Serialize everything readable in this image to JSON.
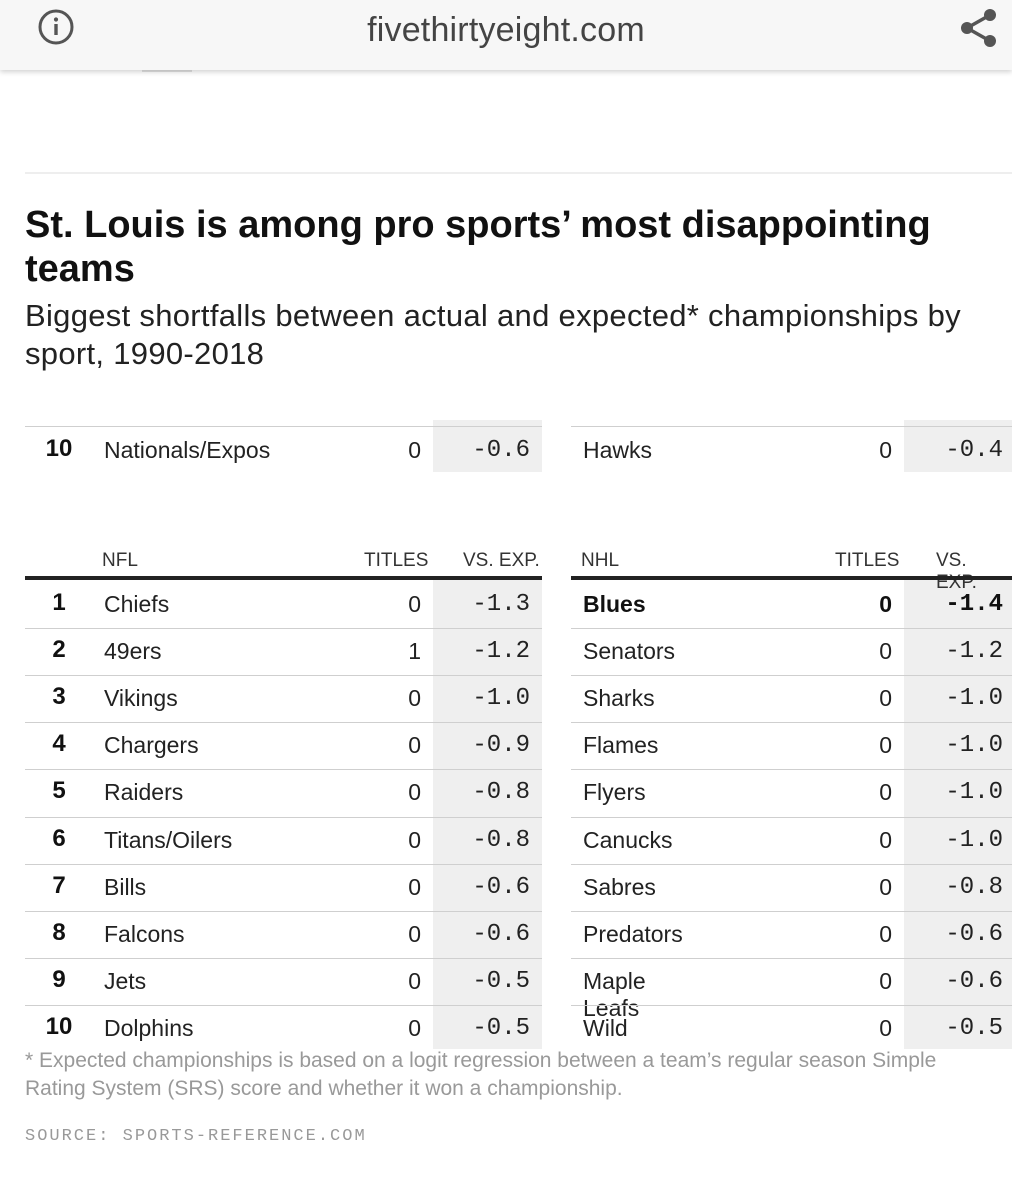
{
  "browser": {
    "domain": "fivethirtyeight.com"
  },
  "chart": {
    "title": "St. Louis is among pro sports’ most disappointing teams",
    "subtitle": "Biggest shortfalls between actual and expected* championships by sport, 1990-2018",
    "top_partial_row": {
      "left": {
        "rank": "10",
        "team": "Nationals/Expos",
        "titles": "0",
        "vs_exp": "-0.6"
      },
      "right": {
        "team": "Hawks",
        "titles": "0",
        "vs_exp": "-0.4"
      }
    },
    "nfl": {
      "header": {
        "league": "NFL",
        "titles": "TITLES",
        "vs_exp": "VS. EXP."
      },
      "rows": [
        {
          "rank": "1",
          "team": "Chiefs",
          "titles": "0",
          "vs_exp": "-1.3"
        },
        {
          "rank": "2",
          "team": "49ers",
          "titles": "1",
          "vs_exp": "-1.2"
        },
        {
          "rank": "3",
          "team": "Vikings",
          "titles": "0",
          "vs_exp": "-1.0"
        },
        {
          "rank": "4",
          "team": "Chargers",
          "titles": "0",
          "vs_exp": "-0.9"
        },
        {
          "rank": "5",
          "team": "Raiders",
          "titles": "0",
          "vs_exp": "-0.8"
        },
        {
          "rank": "6",
          "team": "Titans/Oilers",
          "titles": "0",
          "vs_exp": "-0.8"
        },
        {
          "rank": "7",
          "team": "Bills",
          "titles": "0",
          "vs_exp": "-0.6"
        },
        {
          "rank": "8",
          "team": "Falcons",
          "titles": "0",
          "vs_exp": "-0.6"
        },
        {
          "rank": "9",
          "team": "Jets",
          "titles": "0",
          "vs_exp": "-0.5"
        },
        {
          "rank": "10",
          "team": "Dolphins",
          "titles": "0",
          "vs_exp": "-0.5"
        }
      ]
    },
    "nhl": {
      "header": {
        "league": "NHL",
        "titles": "TITLES",
        "vs_exp": "VS. EXP."
      },
      "rows": [
        {
          "team": "Blues",
          "titles": "0",
          "vs_exp": "-1.4",
          "highlight": true
        },
        {
          "team": "Senators",
          "titles": "0",
          "vs_exp": "-1.2"
        },
        {
          "team": "Sharks",
          "titles": "0",
          "vs_exp": "-1.0"
        },
        {
          "team": "Flames",
          "titles": "0",
          "vs_exp": "-1.0"
        },
        {
          "team": "Flyers",
          "titles": "0",
          "vs_exp": "-1.0"
        },
        {
          "team": "Canucks",
          "titles": "0",
          "vs_exp": "-1.0"
        },
        {
          "team": "Sabres",
          "titles": "0",
          "vs_exp": "-0.8"
        },
        {
          "team": "Predators",
          "titles": "0",
          "vs_exp": "-0.6"
        },
        {
          "team": "Maple Leafs",
          "titles": "0",
          "vs_exp": "-0.6"
        },
        {
          "team": "Wild",
          "titles": "0",
          "vs_exp": "-0.5"
        }
      ]
    },
    "footnote": "* Expected championships is based on a logit regression between a team’s regular season Simple Rating System (SRS) score and whether it won a championship.",
    "source": "SOURCE: SPORTS-REFERENCE.COM"
  }
}
